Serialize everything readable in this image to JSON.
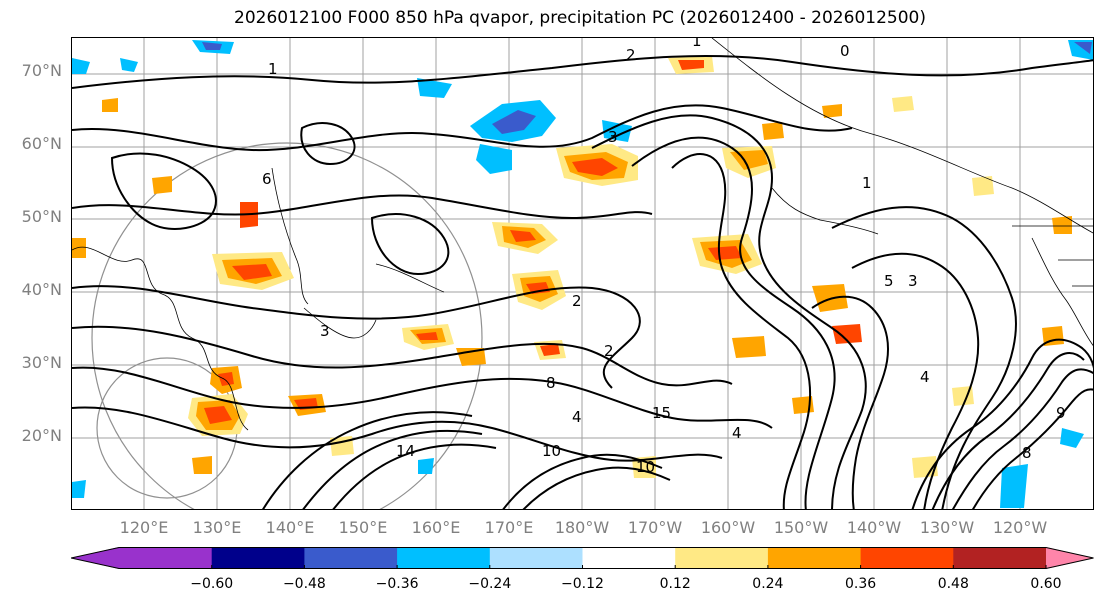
{
  "title": "2026012100 F000 850 hPa qvapor, precipitation PC (2026012400 - 2026012500)",
  "latitude_labels": [
    "70°N",
    "60°N",
    "50°N",
    "40°N",
    "30°N",
    "20°N"
  ],
  "longitude_labels": [
    "120°E",
    "130°E",
    "140°E",
    "150°E",
    "160°E",
    "170°E",
    "180°W",
    "170°W",
    "160°W",
    "150°W",
    "140°W",
    "130°W",
    "120°W"
  ],
  "colorbar": {
    "extend": "both",
    "colors": [
      "#9932CC",
      "#00008B",
      "#3A5BCC",
      "#00BFFF",
      "#ADE0FF",
      "#FFFFFF",
      "#FFE985",
      "#FFA500",
      "#FF4500",
      "#B22222",
      "#FF85AA",
      "#FF85AA"
    ],
    "tick_labels": [
      "−0.60",
      "−0.48",
      "−0.36",
      "−0.24",
      "−0.12",
      "0.12",
      "0.24",
      "0.36",
      "0.48",
      "0.60"
    ]
  },
  "contour_labels": [
    "0",
    "1",
    "1",
    "1",
    "2",
    "2",
    "2",
    "3",
    "3",
    "3",
    "4",
    "4",
    "4",
    "5",
    "6",
    "8",
    "8",
    "9",
    "10",
    "10",
    "14",
    "15"
  ]
}
